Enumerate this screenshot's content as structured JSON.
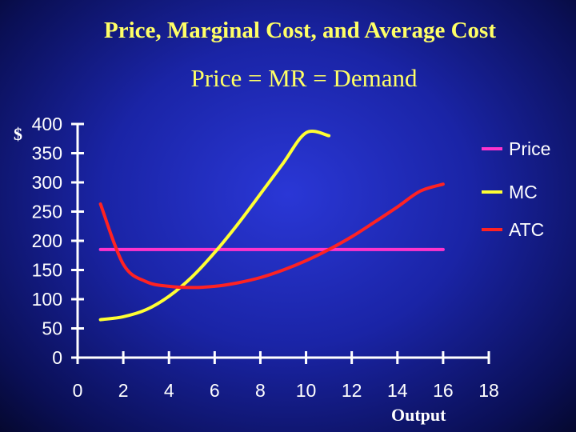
{
  "slide": {
    "title": "Price, Marginal Cost, and Average Cost",
    "subtitle": "Price = MR = Demand",
    "ylabel": "$",
    "xlabel": "Output"
  },
  "chart_data": {
    "type": "line",
    "title": "Price, Marginal Cost, and Average Cost",
    "subtitle": "Price = MR = Demand",
    "xlabel": "Output",
    "ylabel": "$",
    "xlim": [
      0,
      18
    ],
    "ylim": [
      0,
      400
    ],
    "xticks": [
      0,
      2,
      4,
      6,
      8,
      10,
      12,
      14,
      16,
      18
    ],
    "yticks": [
      400,
      350,
      300,
      250,
      200,
      150,
      100,
      50,
      0
    ],
    "grid": false,
    "legend_position": "top-right",
    "series": [
      {
        "name": "Price",
        "color": "#ff33cc",
        "x": [
          1,
          16
        ],
        "y": [
          185,
          185
        ]
      },
      {
        "name": "MC",
        "color": "#ffff33",
        "x": [
          1,
          2,
          3,
          4,
          5,
          6,
          7,
          8,
          9,
          10,
          11
        ],
        "y": [
          65,
          70,
          82,
          105,
          138,
          180,
          228,
          280,
          333,
          385,
          380
        ]
      },
      {
        "name": "ATC",
        "color": "#ff2222",
        "x": [
          1,
          2,
          3,
          4,
          5,
          6,
          7,
          8,
          9,
          10,
          11,
          12,
          13,
          14,
          15,
          16
        ],
        "y": [
          263,
          160,
          130,
          122,
          120,
          122,
          128,
          137,
          150,
          166,
          185,
          207,
          232,
          258,
          285,
          297
        ]
      }
    ]
  }
}
